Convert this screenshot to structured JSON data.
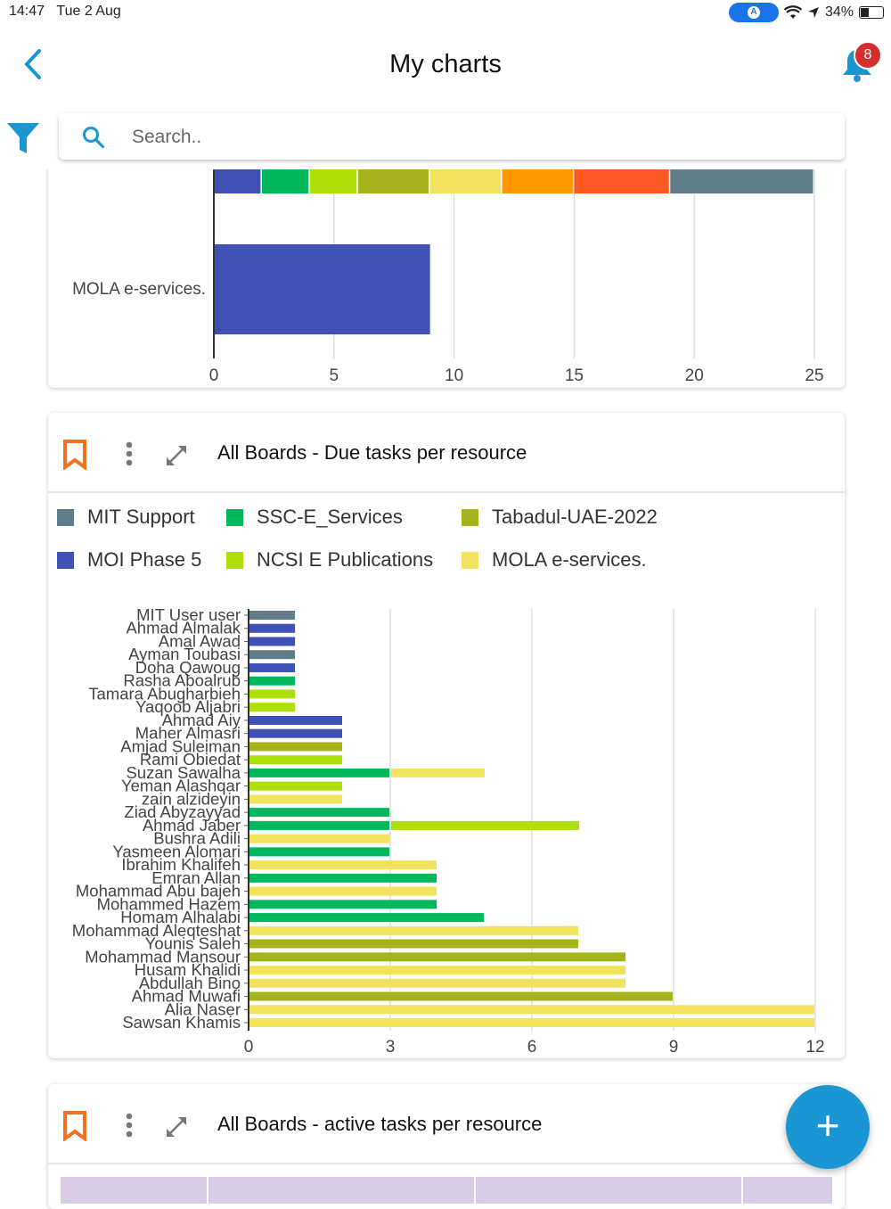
{
  "status_bar": {
    "time": "14:47",
    "date": "Tue 2 Aug",
    "battery": "34%"
  },
  "header": {
    "title": "My charts",
    "notification_count": "8"
  },
  "search": {
    "placeholder": "Search.."
  },
  "fab": {
    "label": "+"
  },
  "colors": {
    "accent": "#1b96d4",
    "bookmark": "#f07124",
    "badge": "#d32f2f"
  },
  "charts": [
    {
      "title": "",
      "chart_data": {
        "type": "bar",
        "orientation": "horizontal",
        "stacked": true,
        "partial_row_segments": [
          {
            "value": 2,
            "color": "#3F51B5"
          },
          {
            "value": 2,
            "color": "#00B85C"
          },
          {
            "value": 2,
            "color": "#AEDF08"
          },
          {
            "value": 3,
            "color": "#A5B41A"
          },
          {
            "value": 3,
            "color": "#F2E35F"
          },
          {
            "value": 3,
            "color": "#FF9800"
          },
          {
            "value": 4,
            "color": "#FF5722"
          },
          {
            "value": 6,
            "color": "#607D8B"
          }
        ],
        "categories": [
          "MOLA e-services."
        ],
        "values": [
          9
        ],
        "bar_color": "#3F51B5",
        "xlim": [
          0,
          25
        ],
        "xticks": [
          "0",
          "5",
          "10",
          "15",
          "20",
          "25"
        ],
        "grid": true
      }
    },
    {
      "title": "All Boards - Due tasks per resource",
      "chart_data": {
        "type": "bar",
        "orientation": "horizontal",
        "stacked": true,
        "legend_position": "top",
        "series": [
          {
            "name": "MIT Support",
            "color": "#607D8B"
          },
          {
            "name": "SSC-E_Services",
            "color": "#00B85C"
          },
          {
            "name": "Tabadul-UAE-2022",
            "color": "#A5B41A"
          },
          {
            "name": "MOI Phase 5",
            "color": "#3F51B5"
          },
          {
            "name": "NCSI E Publications",
            "color": "#AEDF08"
          },
          {
            "name": "MOLA e-services.",
            "color": "#F2E35F"
          }
        ],
        "rows": [
          {
            "name": "MIT User  user",
            "segments": [
              [
                "MIT Support",
                1
              ]
            ]
          },
          {
            "name": "Ahmad  Almalak",
            "segments": [
              [
                "MOI Phase 5",
                1
              ]
            ]
          },
          {
            "name": "Amal Awad",
            "segments": [
              [
                "MOI Phase 5",
                1
              ]
            ]
          },
          {
            "name": "Ayman Toubasi",
            "segments": [
              [
                "MIT Support",
                1
              ]
            ]
          },
          {
            "name": "Doha Qawoug",
            "segments": [
              [
                "MOI Phase 5",
                1
              ]
            ]
          },
          {
            "name": "Rasha Aboalrub",
            "segments": [
              [
                "SSC-E_Services",
                1
              ]
            ]
          },
          {
            "name": "Tamara Abugharbieh",
            "segments": [
              [
                "NCSI E Publications",
                1
              ]
            ]
          },
          {
            "name": "Yaqoob Aljabri",
            "segments": [
              [
                "NCSI E Publications",
                1
              ]
            ]
          },
          {
            "name": "Ahmad Aiy",
            "segments": [
              [
                "MOI Phase 5",
                2
              ]
            ]
          },
          {
            "name": "Maher Almasri",
            "segments": [
              [
                "MOI Phase 5",
                2
              ]
            ]
          },
          {
            "name": "Amjad Suleiman",
            "segments": [
              [
                "Tabadul-UAE-2022",
                2
              ]
            ]
          },
          {
            "name": "Rami Obiedat",
            "segments": [
              [
                "NCSI E Publications",
                2
              ]
            ]
          },
          {
            "name": "Suzan Sawalha",
            "segments": [
              [
                "SSC-E_Services",
                3
              ],
              [
                "MOLA e-services.",
                2
              ]
            ]
          },
          {
            "name": "Yeman Alashqar",
            "segments": [
              [
                "NCSI E Publications",
                2
              ]
            ]
          },
          {
            "name": "zain alzideyin",
            "segments": [
              [
                "MOLA e-services.",
                2
              ]
            ]
          },
          {
            "name": "Ziad Abyzayyad",
            "segments": [
              [
                "SSC-E_Services",
                3
              ]
            ]
          },
          {
            "name": "Ahmad Jaber",
            "segments": [
              [
                "SSC-E_Services",
                3
              ],
              [
                "NCSI E Publications",
                4
              ]
            ]
          },
          {
            "name": "Bushra Adili",
            "segments": [
              [
                "MOLA e-services.",
                3
              ]
            ]
          },
          {
            "name": "Yasmeen Alomari",
            "segments": [
              [
                "SSC-E_Services",
                3
              ]
            ]
          },
          {
            "name": "Ibrahim Khalifeh",
            "segments": [
              [
                "MOLA e-services.",
                4
              ]
            ]
          },
          {
            "name": "Emran Allan",
            "segments": [
              [
                "SSC-E_Services",
                4
              ]
            ]
          },
          {
            "name": "Mohammad Abu bajeh",
            "segments": [
              [
                "MOLA e-services.",
                4
              ]
            ]
          },
          {
            "name": "Mohammed Hazem",
            "segments": [
              [
                "SSC-E_Services",
                4
              ]
            ]
          },
          {
            "name": "Homam Alhalabi",
            "segments": [
              [
                "SSC-E_Services",
                5
              ]
            ]
          },
          {
            "name": "Mohammad  Aleqteshat",
            "segments": [
              [
                "MOLA e-services.",
                7
              ]
            ]
          },
          {
            "name": "Younis  Saleh",
            "segments": [
              [
                "Tabadul-UAE-2022",
                7
              ]
            ]
          },
          {
            "name": "Mohammad Mansour",
            "segments": [
              [
                "Tabadul-UAE-2022",
                8
              ]
            ]
          },
          {
            "name": "Husam Khalidi",
            "segments": [
              [
                "MOLA e-services.",
                8
              ]
            ]
          },
          {
            "name": "Abdullah Bino",
            "segments": [
              [
                "MOLA e-services.",
                8
              ]
            ]
          },
          {
            "name": "Ahmad Muwafi",
            "segments": [
              [
                "Tabadul-UAE-2022",
                9
              ]
            ]
          },
          {
            "name": "Alia Naser",
            "segments": [
              [
                "MOLA e-services.",
                12
              ]
            ]
          },
          {
            "name": "Sawsan Khamis",
            "segments": [
              [
                "MOLA e-services.",
                12
              ]
            ]
          }
        ],
        "xlim": [
          0,
          12
        ],
        "xticks": [
          "0",
          "3",
          "6",
          "9",
          "12"
        ],
        "grid": true
      }
    },
    {
      "title": "All Boards - active tasks per resource",
      "chart_data": {
        "type": "table"
      }
    }
  ]
}
